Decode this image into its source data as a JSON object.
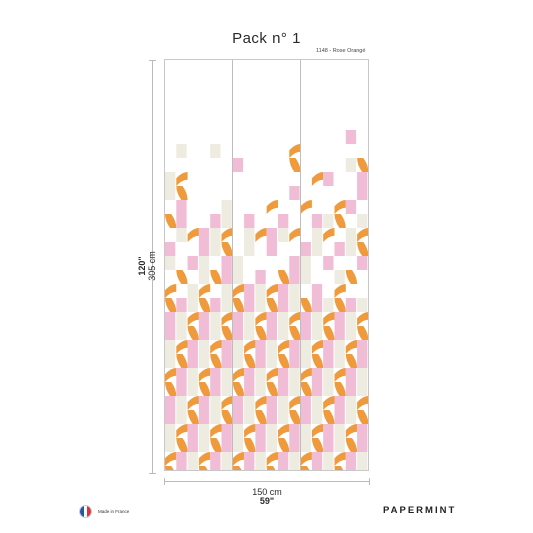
{
  "header": {
    "title": "Pack n° 1",
    "reference": "1148 - Rose Orangé"
  },
  "dimensions": {
    "height_in": "120\"",
    "height_cm": "305 cm",
    "width_cm": "150 cm",
    "width_in": "59\""
  },
  "footer": {
    "made_in": "Made in France",
    "brand": "PAPERMINT"
  },
  "colors": {
    "orange": "#ef9a3c",
    "pink": "#f1bcd6",
    "cream": "#eeebe0",
    "flag_blue": "#2b55a3",
    "flag_white": "#ffffff",
    "flag_red": "#e0333b"
  },
  "panels": 3
}
